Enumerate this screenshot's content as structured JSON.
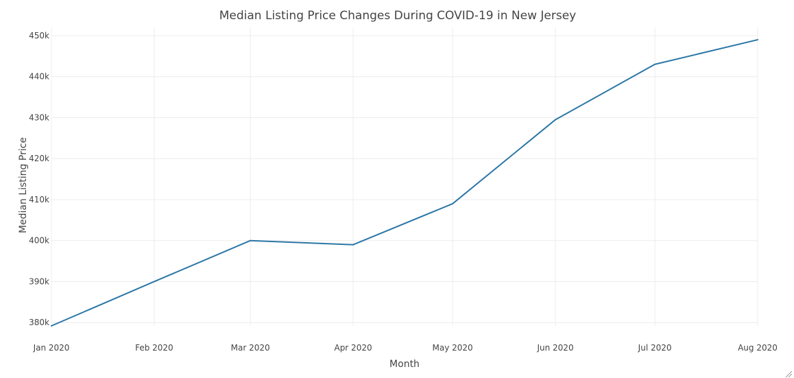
{
  "chart_data": {
    "type": "line",
    "title": "Median Listing Price Changes During COVID-19 in New Jersey",
    "xlabel": "Month",
    "ylabel": "Median Listing Price",
    "categories": [
      "Jan 2020",
      "Feb 2020",
      "Mar 2020",
      "Apr 2020",
      "May 2020",
      "Jun 2020",
      "Jul 2020",
      "Aug 2020"
    ],
    "x": [
      "2020-01-01",
      "2020-02-01",
      "2020-03-01",
      "2020-04-01",
      "2020-05-01",
      "2020-06-01",
      "2020-07-01",
      "2020-08-01"
    ],
    "series": [
      {
        "values": [
          379200,
          390000,
          400000,
          399000,
          409000,
          429500,
          443000,
          449000
        ],
        "color": "#2b76a6"
      }
    ],
    "yticks": [
      380000,
      390000,
      400000,
      410000,
      420000,
      430000,
      440000,
      450000
    ],
    "ytick_labels": [
      "380k",
      "390k",
      "400k",
      "410k",
      "420k",
      "430k",
      "440k",
      "450k"
    ],
    "ylim": [
      379200,
      452000
    ],
    "xlim": [
      "2020-01-01",
      "2020-08-01"
    ],
    "grid": true,
    "legend": "none"
  }
}
